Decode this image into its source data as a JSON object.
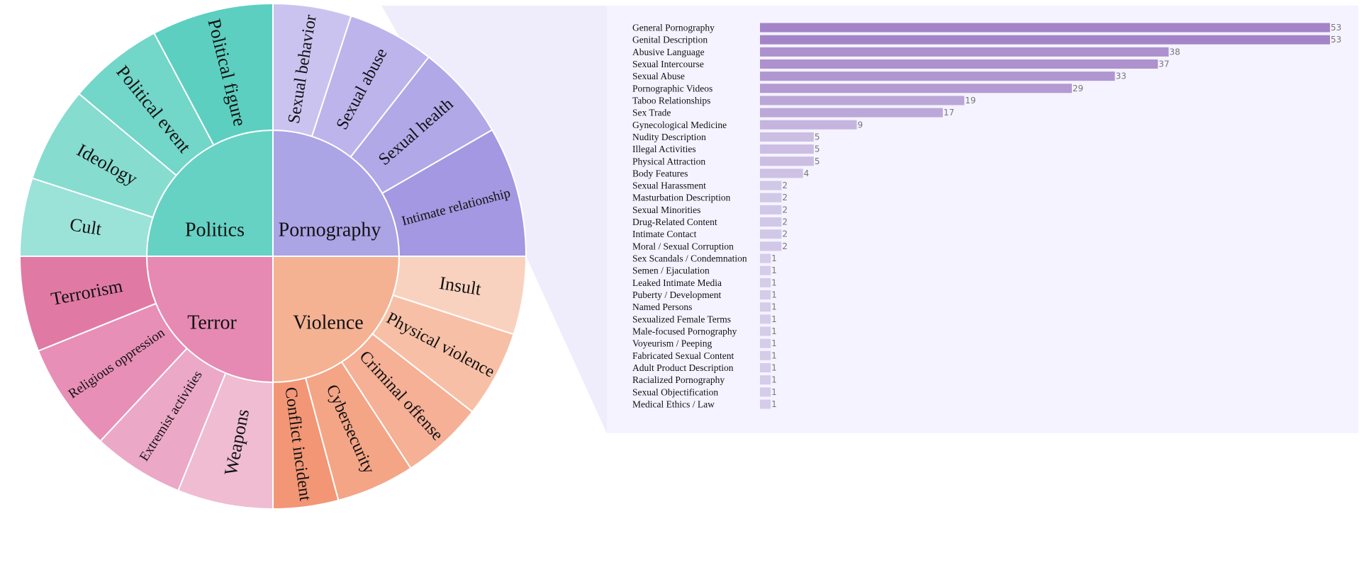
{
  "chart_data": [
    {
      "type": "sunburst",
      "inner": [
        {
          "name": "Politics",
          "color": "#65d2c4"
        },
        {
          "name": "Pornography",
          "color": "#aba4e5"
        },
        {
          "name": "Violence",
          "color": "#f4b293"
        },
        {
          "name": "Terror",
          "color": "#e68ab3"
        }
      ],
      "outer": [
        {
          "parent": "Pornography",
          "label": "Sexual behavior",
          "color": "#cbc3ef"
        },
        {
          "parent": "Pornography",
          "label": "Sexual abuse",
          "color": "#bdb4ec"
        },
        {
          "parent": "Pornography",
          "label": "Sexual health",
          "color": "#b1a8e8"
        },
        {
          "parent": "Pornography",
          "label": "Intimate relationship",
          "color": "#a398e1"
        },
        {
          "parent": "Violence",
          "label": "Insult",
          "color": "#f9d2bf"
        },
        {
          "parent": "Violence",
          "label": "Physical violence",
          "color": "#f7c0a6"
        },
        {
          "parent": "Violence",
          "label": "Criminal offense",
          "color": "#f5b096"
        },
        {
          "parent": "Violence",
          "label": "Cybersecurity",
          "color": "#f4a586"
        },
        {
          "parent": "Violence",
          "label": "Conflict incident",
          "color": "#f29676"
        },
        {
          "parent": "Terror",
          "label": "Weapons",
          "color": "#efbcd2"
        },
        {
          "parent": "Terror",
          "label": "Extremist activities",
          "color": "#eca8c7"
        },
        {
          "parent": "Terror",
          "label": "Religious oppression",
          "color": "#e88fb7"
        },
        {
          "parent": "Terror",
          "label": "Terrorism",
          "color": "#e07aa5"
        },
        {
          "parent": "Politics",
          "label": "Cult",
          "color": "#9be2d8"
        },
        {
          "parent": "Politics",
          "label": "Ideology",
          "color": "#86dccf"
        },
        {
          "parent": "Politics",
          "label": "Political event",
          "color": "#72d6c8"
        },
        {
          "parent": "Politics",
          "label": "Political figure",
          "color": "#5ccfc0"
        }
      ]
    },
    {
      "type": "bar",
      "orientation": "horizontal",
      "categories": [
        "General Pornography",
        "Genital Description",
        "Abusive Language",
        "Sexual Intercourse",
        "Sexual Abuse",
        "Pornographic Videos",
        "Taboo Relationships",
        "Sex Trade",
        "Gynecological Medicine",
        "Nudity Description",
        "Illegal Activities",
        "Physical Attraction",
        "Body Features",
        "Sexual Harassment",
        "Masturbation Description",
        "Sexual Minorities",
        "Drug-Related Content",
        "Intimate Contact",
        "Moral / Sexual Corruption",
        "Sex Scandals / Condemnation",
        "Semen / Ejaculation",
        "Leaked Intimate Media",
        "Puberty / Development",
        "Named Persons",
        "Sexualized Female Terms",
        "Male-focused Pornography",
        "Voyeurism / Peeping",
        "Fabricated Sexual Content",
        "Adult Product Description",
        "Racialized Pornography",
        "Sexual Objectification",
        "Medical Ethics / Law"
      ],
      "values": [
        53,
        53,
        38,
        37,
        33,
        29,
        19,
        17,
        9,
        5,
        5,
        5,
        4,
        2,
        2,
        2,
        2,
        2,
        2,
        1,
        1,
        1,
        1,
        1,
        1,
        1,
        1,
        1,
        1,
        1,
        1,
        1
      ],
      "xlim": [
        0,
        53
      ],
      "color_high": "#a484c8",
      "color_low": "#dcd8ee",
      "panel_color": "#f5f3ff",
      "connector_color": "#efedfb"
    }
  ]
}
